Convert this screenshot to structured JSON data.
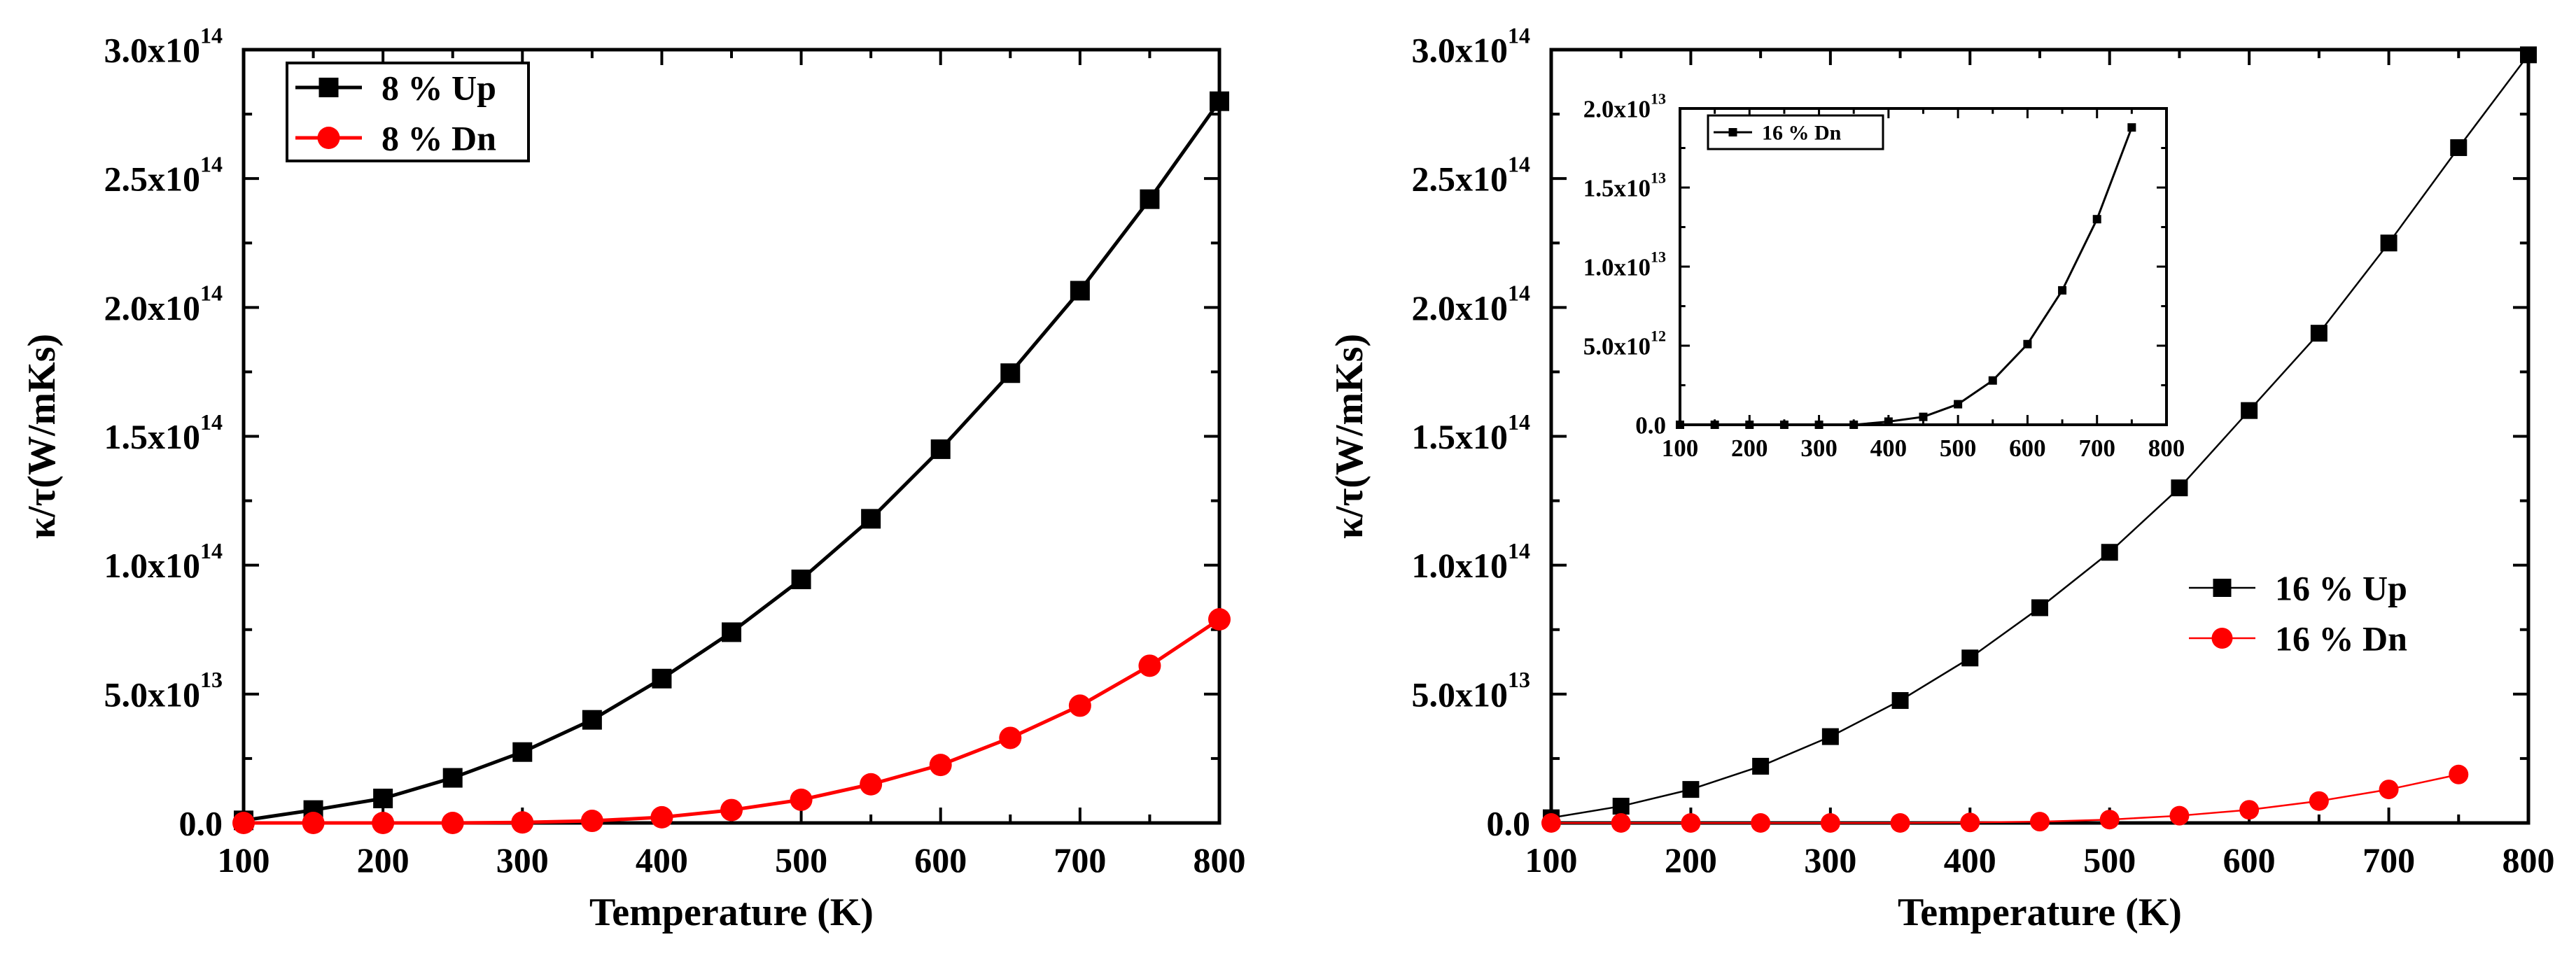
{
  "chart_data": [
    {
      "type": "line",
      "id": "left",
      "xlabel": "Temperature (K)",
      "ylabel": "κ/τ(W/mKs)",
      "xlim": [
        100,
        800
      ],
      "ylim": [
        0,
        300000000000000.0
      ],
      "xticks": [
        "100",
        "200",
        "300",
        "400",
        "500",
        "600",
        "700",
        "800"
      ],
      "yticks": [
        {
          "mant": "0.0",
          "exp": ""
        },
        {
          "mant": "5.0x10",
          "exp": "13"
        },
        {
          "mant": "1.0x10",
          "exp": "14"
        },
        {
          "mant": "1.5x10",
          "exp": "14"
        },
        {
          "mant": "2.0x10",
          "exp": "14"
        },
        {
          "mant": "2.5x10",
          "exp": "14"
        },
        {
          "mant": "3.0x10",
          "exp": "14"
        }
      ],
      "legend_position": "top-left",
      "x": [
        100,
        150,
        200,
        250,
        300,
        350,
        400,
        450,
        500,
        550,
        600,
        650,
        700,
        750,
        800
      ],
      "series": [
        {
          "name": "8 % Up",
          "color": "#000000",
          "marker": "square",
          "values": [
            1000000000000.0,
            5000000000000.0,
            9500000000000.0,
            17500000000000.0,
            27500000000000.0,
            40000000000000.0,
            56000000000000.0,
            74000000000000.0,
            94500000000000.0,
            118000000000000.0,
            145000000000000.0,
            174500000000000.0,
            206500000000000.0,
            242000000000000.0,
            280000000000000.0
          ]
        },
        {
          "name": "8 % Dn",
          "color": "#ff0000",
          "marker": "circle",
          "values": [
            0,
            0,
            0,
            0,
            200000000000.0,
            800000000000.0,
            2200000000000.0,
            5000000000000.0,
            9000000000000.0,
            15000000000000.0,
            22500000000000.0,
            33000000000000.0,
            45500000000000.0,
            61000000000000.0,
            79000000000000.0
          ]
        }
      ]
    },
    {
      "type": "line",
      "id": "right",
      "xlabel": "Temperature (K)",
      "ylabel": "κ/τ(W/mKs)",
      "xlim": [
        100,
        800
      ],
      "ylim": [
        0,
        300000000000000.0
      ],
      "xticks": [
        "100",
        "200",
        "300",
        "400",
        "500",
        "600",
        "700",
        "800"
      ],
      "yticks": [
        {
          "mant": "0.0",
          "exp": ""
        },
        {
          "mant": "5.0x10",
          "exp": "13"
        },
        {
          "mant": "1.0x10",
          "exp": "14"
        },
        {
          "mant": "1.5x10",
          "exp": "14"
        },
        {
          "mant": "2.0x10",
          "exp": "14"
        },
        {
          "mant": "2.5x10",
          "exp": "14"
        },
        {
          "mant": "3.0x10",
          "exp": "14"
        }
      ],
      "legend_position": "center-right",
      "x": [
        100,
        150,
        200,
        250,
        300,
        350,
        400,
        450,
        500,
        550,
        600,
        650,
        700,
        750,
        800
      ],
      "series": [
        {
          "name": "16 % Up",
          "color": "#000000",
          "marker": "square",
          "values": [
            2000000000000.0,
            6500000000000.0,
            13000000000000.0,
            22000000000000.0,
            33500000000000.0,
            47500000000000.0,
            64000000000000.0,
            83500000000000.0,
            105000000000000.0,
            130000000000000.0,
            160000000000000.0,
            190000000000000.0,
            225000000000000.0,
            262000000000000.0,
            298000000000000.0
          ]
        },
        {
          "name": "16 % Dn",
          "color": "#ff0000",
          "marker": "circle",
          "values": [
            0,
            0,
            0,
            0,
            0,
            0,
            200000000000.0,
            500000000000.0,
            1300000000000.0,
            2800000000000.0,
            5100000000000.0,
            8500000000000.0,
            13000000000000.0,
            18800000000000.0,
            null
          ]
        }
      ]
    },
    {
      "type": "line",
      "id": "inset",
      "xlabel": "",
      "ylabel": "",
      "xlim": [
        100,
        800
      ],
      "ylim": [
        0,
        20000000000000.0
      ],
      "xticks": [
        "100",
        "200",
        "300",
        "400",
        "500",
        "600",
        "700",
        "800"
      ],
      "yticks": [
        {
          "mant": "0.0",
          "exp": ""
        },
        {
          "mant": "5.0x10",
          "exp": "12"
        },
        {
          "mant": "1.0x10",
          "exp": "13"
        },
        {
          "mant": "1.5x10",
          "exp": "13"
        },
        {
          "mant": "2.0x10",
          "exp": "13"
        }
      ],
      "legend_position": "top-left",
      "x": [
        100,
        150,
        200,
        250,
        300,
        350,
        400,
        450,
        500,
        550,
        600,
        650,
        700,
        750
      ],
      "series": [
        {
          "name": "16 % Dn",
          "color": "#000000",
          "marker": "square",
          "values": [
            0,
            0,
            0,
            0,
            0,
            0,
            200000000000.0,
            500000000000.0,
            1300000000000.0,
            2800000000000.0,
            5100000000000.0,
            8500000000000.0,
            13000000000000.0,
            18800000000000.0
          ]
        }
      ]
    }
  ]
}
